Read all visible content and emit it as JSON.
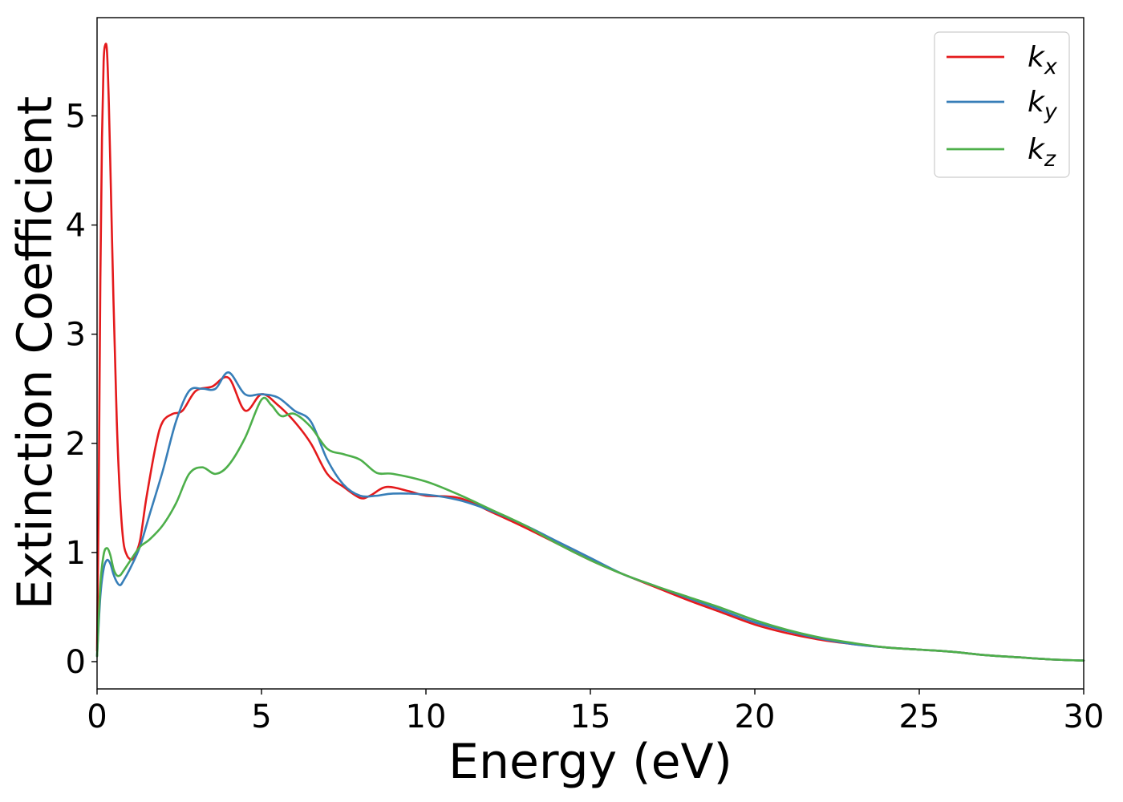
{
  "chart_data": {
    "type": "line",
    "title": "",
    "xlabel": "Energy (eV)",
    "ylabel": "Extinction Coefficient",
    "xlim": [
      0,
      30
    ],
    "ylim": [
      -0.25,
      5.9
    ],
    "xticks": [
      0,
      5,
      10,
      15,
      20,
      25,
      30
    ],
    "yticks": [
      0,
      1,
      2,
      3,
      4,
      5
    ],
    "grid": false,
    "legend_position": "top-right",
    "series": [
      {
        "name": "kx",
        "label_base": "k",
        "label_sub": "x",
        "color": "#e41a1c",
        "x": [
          0,
          0.05,
          0.1,
          0.15,
          0.2,
          0.25,
          0.3,
          0.35,
          0.4,
          0.5,
          0.6,
          0.7,
          0.8,
          0.9,
          1.0,
          1.1,
          1.3,
          1.5,
          1.8,
          2.0,
          2.3,
          2.6,
          3.0,
          3.5,
          4.0,
          4.5,
          5.0,
          5.5,
          6.0,
          6.5,
          7.0,
          7.5,
          8.0,
          8.3,
          8.8,
          9.5,
          10.0,
          11.0,
          12.0,
          13.0,
          14.0,
          15.0,
          16.0,
          17.0,
          18.0,
          19.0,
          20.0,
          21.0,
          22.0,
          23.0,
          24.0,
          25.0,
          26.0,
          27.0,
          28.0,
          29.0,
          30.0
        ],
        "values": [
          0.1,
          1.5,
          3.5,
          4.8,
          5.5,
          5.65,
          5.6,
          5.2,
          4.6,
          3.3,
          2.2,
          1.5,
          1.1,
          0.98,
          0.94,
          0.95,
          1.1,
          1.5,
          2.0,
          2.2,
          2.27,
          2.3,
          2.48,
          2.52,
          2.6,
          2.3,
          2.45,
          2.35,
          2.2,
          2.0,
          1.72,
          1.6,
          1.5,
          1.52,
          1.6,
          1.56,
          1.52,
          1.5,
          1.37,
          1.23,
          1.08,
          0.93,
          0.8,
          0.68,
          0.56,
          0.45,
          0.34,
          0.26,
          0.2,
          0.16,
          0.13,
          0.11,
          0.09,
          0.06,
          0.04,
          0.02,
          0.01
        ]
      },
      {
        "name": "ky",
        "label_base": "k",
        "label_sub": "y",
        "color": "#377eb8",
        "x": [
          0,
          0.1,
          0.2,
          0.3,
          0.4,
          0.5,
          0.6,
          0.7,
          0.8,
          1.0,
          1.3,
          1.6,
          2.0,
          2.4,
          2.8,
          3.2,
          3.6,
          4.0,
          4.5,
          5.0,
          5.5,
          6.0,
          6.5,
          7.0,
          7.5,
          8.0,
          8.5,
          9.0,
          10.0,
          11.0,
          12.0,
          13.0,
          14.0,
          15.0,
          16.0,
          17.0,
          18.0,
          19.0,
          20.0,
          21.0,
          22.0,
          23.0,
          24.0,
          25.0,
          26.0,
          27.0,
          28.0,
          29.0,
          30.0
        ],
        "values": [
          0.05,
          0.6,
          0.85,
          0.93,
          0.9,
          0.8,
          0.73,
          0.7,
          0.74,
          0.85,
          1.05,
          1.35,
          1.75,
          2.2,
          2.48,
          2.5,
          2.5,
          2.65,
          2.45,
          2.45,
          2.42,
          2.3,
          2.2,
          1.85,
          1.62,
          1.52,
          1.52,
          1.54,
          1.53,
          1.48,
          1.38,
          1.25,
          1.1,
          0.95,
          0.8,
          0.69,
          0.58,
          0.47,
          0.36,
          0.28,
          0.21,
          0.16,
          0.13,
          0.11,
          0.09,
          0.06,
          0.04,
          0.02,
          0.01
        ]
      },
      {
        "name": "kz",
        "label_base": "k",
        "label_sub": "z",
        "color": "#4daf4a",
        "x": [
          0,
          0.1,
          0.2,
          0.3,
          0.4,
          0.5,
          0.6,
          0.7,
          0.8,
          1.0,
          1.3,
          1.6,
          2.0,
          2.4,
          2.8,
          3.2,
          3.6,
          4.0,
          4.5,
          5.0,
          5.3,
          5.6,
          6.0,
          6.5,
          7.0,
          7.5,
          8.0,
          8.5,
          9.0,
          10.0,
          11.0,
          12.0,
          13.0,
          14.0,
          15.0,
          16.0,
          17.0,
          18.0,
          19.0,
          20.0,
          21.0,
          22.0,
          23.0,
          24.0,
          25.0,
          26.0,
          27.0,
          28.0,
          29.0,
          30.0
        ],
        "values": [
          0.05,
          0.7,
          0.98,
          1.04,
          0.98,
          0.85,
          0.79,
          0.79,
          0.83,
          0.92,
          1.05,
          1.12,
          1.25,
          1.45,
          1.72,
          1.78,
          1.72,
          1.8,
          2.05,
          2.4,
          2.35,
          2.25,
          2.27,
          2.15,
          1.95,
          1.9,
          1.85,
          1.73,
          1.72,
          1.65,
          1.53,
          1.39,
          1.25,
          1.08,
          0.93,
          0.8,
          0.69,
          0.59,
          0.49,
          0.38,
          0.29,
          0.22,
          0.17,
          0.13,
          0.11,
          0.09,
          0.06,
          0.04,
          0.02,
          0.01
        ]
      }
    ]
  }
}
